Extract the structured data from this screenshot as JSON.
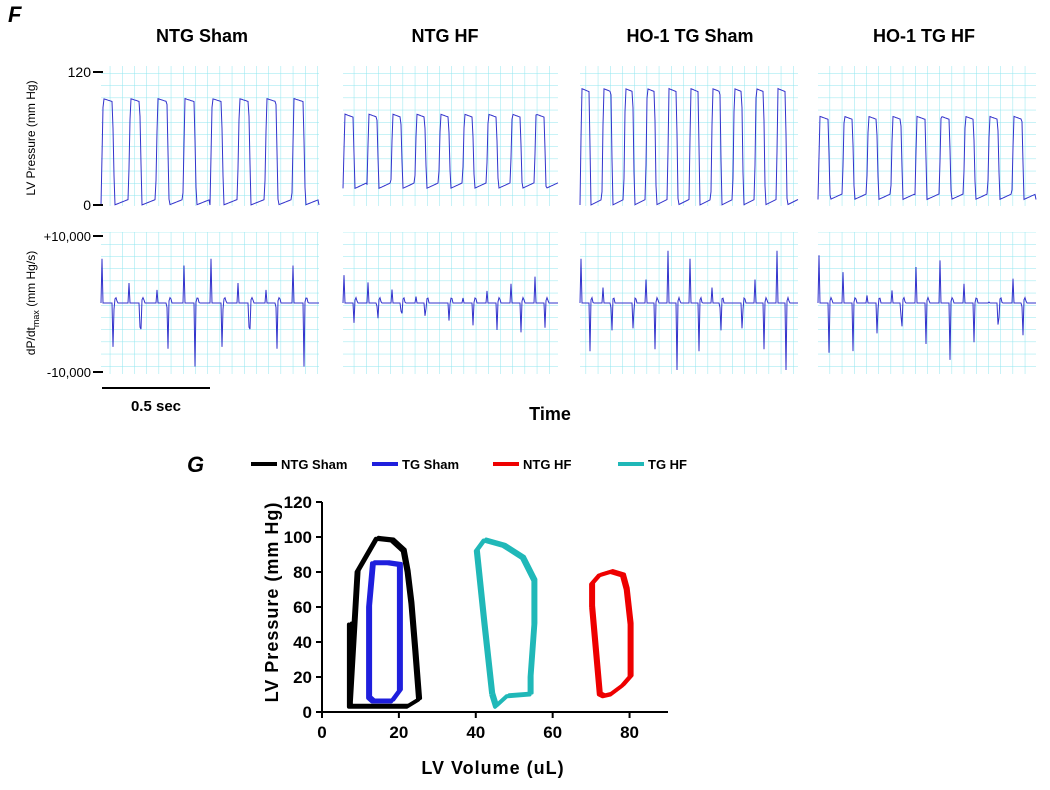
{
  "panel_f": {
    "label": "F",
    "columns": [
      "NTG Sham",
      "NTG HF",
      "HO-1 TG Sham",
      "HO-1 TG HF"
    ],
    "top_row": {
      "ylabel": "LV Pressure (mm Hg)",
      "ytick_max": "120",
      "ytick_min": "0"
    },
    "bottom_row": {
      "ylabel_main": "dP/dt",
      "ylabel_sub": "max",
      "ylabel_tail": " (mm Hg/s)",
      "ytick_max": "+10,000",
      "ytick_min": "-10,000"
    },
    "scale_bar": "0.5 sec",
    "xlabel": "Time",
    "colors": {
      "trace": "#3333cc",
      "grid": "#8fe6ef"
    }
  },
  "chart_data": {
    "label": "G",
    "type": "line",
    "xlabel": "LV Volume (uL)",
    "ylabel": "LV Pressure (mm Hg)",
    "xlim": [
      0,
      90
    ],
    "ylim": [
      0,
      120
    ],
    "xticks": [
      0,
      20,
      40,
      60,
      80
    ],
    "yticks": [
      0,
      20,
      40,
      60,
      80,
      100,
      120
    ],
    "legend_position": "top",
    "series": [
      {
        "name": "NTG Sham",
        "color": "#000000",
        "x": [
          7,
          9,
          14,
          18,
          21,
          22,
          23,
          24,
          25,
          22,
          18,
          12,
          9,
          8,
          7,
          7,
          7
        ],
        "y": [
          5,
          80,
          99,
          98,
          92,
          80,
          62,
          35,
          7,
          3,
          3,
          3,
          3,
          3,
          3,
          50,
          5
        ]
      },
      {
        "name": "TG Sham",
        "color": "#1f1fdd",
        "x": [
          12,
          12,
          13,
          17,
          20,
          20,
          20,
          20,
          18,
          13,
          12,
          12
        ],
        "y": [
          10,
          60,
          85,
          85,
          84,
          70,
          45,
          12,
          6,
          6,
          8,
          10
        ]
      },
      {
        "name": "NTG HF",
        "color": "#ee0000",
        "x": [
          70,
          70,
          72,
          75,
          78,
          79,
          80,
          80,
          78,
          75,
          73,
          72,
          70
        ],
        "y": [
          60,
          73,
          78,
          80,
          78,
          70,
          50,
          20,
          15,
          10,
          9,
          10,
          60
        ]
      },
      {
        "name": "TG HF",
        "color": "#20b8b8",
        "x": [
          44,
          42,
          40,
          42,
          47,
          52,
          55,
          55,
          54,
          54,
          54,
          48,
          45,
          44
        ],
        "y": [
          10,
          50,
          92,
          98,
          95,
          88,
          75,
          50,
          20,
          12,
          10,
          9,
          3,
          10
        ]
      }
    ]
  }
}
